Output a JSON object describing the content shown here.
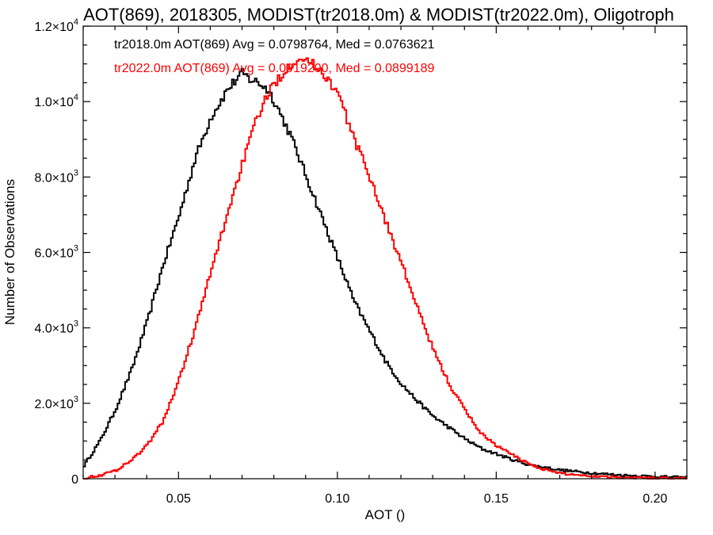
{
  "chart_data": {
    "type": "line",
    "title": "AOT(869), 2018305, MODIST(tr2018.0m) & MODIST(tr2022.0m), Oligotroph",
    "xlabel": "AOT ()",
    "ylabel": "Number of Observations",
    "xlim": [
      0.02,
      0.21
    ],
    "ylim": [
      0,
      12000
    ],
    "grid": false,
    "x_ticks": [
      {
        "value": 0.05,
        "label": "0.05"
      },
      {
        "value": 0.1,
        "label": "0.10"
      },
      {
        "value": 0.15,
        "label": "0.15"
      },
      {
        "value": 0.2,
        "label": "0.20"
      }
    ],
    "y_ticks": [
      {
        "value": 0,
        "mantissa": "0",
        "exponent": ""
      },
      {
        "value": 2000,
        "mantissa": "2.0×10",
        "exponent": "3"
      },
      {
        "value": 4000,
        "mantissa": "4.0×10",
        "exponent": "3"
      },
      {
        "value": 6000,
        "mantissa": "6.0×10",
        "exponent": "3"
      },
      {
        "value": 8000,
        "mantissa": "8.0×10",
        "exponent": "3"
      },
      {
        "value": 10000,
        "mantissa": "1.0×10",
        "exponent": "4"
      },
      {
        "value": 12000,
        "mantissa": "1.2×10",
        "exponent": "4"
      }
    ],
    "annotations": [
      {
        "text": "tr2018.0m AOT(869) Avg = 0.0798764, Med = 0.0763621",
        "color": "#000000"
      },
      {
        "text": "tr2022.0m AOT(869) Avg = 0.0919200, Med = 0.0899189",
        "color": "#ff0000"
      }
    ],
    "series": [
      {
        "color": "#000000",
        "style": "step",
        "x": [
          0.02,
          0.025,
          0.03,
          0.035,
          0.04,
          0.045,
          0.05,
          0.055,
          0.06,
          0.065,
          0.068,
          0.07,
          0.072,
          0.075,
          0.078,
          0.08,
          0.085,
          0.09,
          0.095,
          0.1,
          0.105,
          0.11,
          0.115,
          0.12,
          0.125,
          0.13,
          0.135,
          0.14,
          0.145,
          0.15,
          0.155,
          0.16,
          0.17,
          0.18,
          0.19,
          0.2,
          0.21
        ],
        "y": [
          350,
          1000,
          1850,
          2900,
          4200,
          5700,
          7000,
          8500,
          9600,
          10300,
          10600,
          10750,
          10600,
          10500,
          10300,
          10000,
          9100,
          8000,
          6900,
          5800,
          4700,
          3900,
          3100,
          2500,
          2050,
          1650,
          1350,
          1050,
          800,
          650,
          500,
          370,
          230,
          150,
          90,
          60,
          30
        ]
      },
      {
        "color": "#ff0000",
        "style": "step",
        "x": [
          0.02,
          0.025,
          0.03,
          0.035,
          0.04,
          0.045,
          0.05,
          0.055,
          0.06,
          0.065,
          0.07,
          0.075,
          0.08,
          0.085,
          0.088,
          0.09,
          0.095,
          0.1,
          0.105,
          0.11,
          0.115,
          0.12,
          0.125,
          0.13,
          0.135,
          0.14,
          0.145,
          0.15,
          0.155,
          0.16,
          0.165,
          0.17,
          0.18,
          0.19,
          0.2,
          0.21
        ],
        "y": [
          20,
          90,
          220,
          500,
          900,
          1550,
          2650,
          4000,
          5500,
          7000,
          8400,
          9700,
          10500,
          11000,
          11200,
          11100,
          10800,
          10200,
          9000,
          8000,
          6800,
          5700,
          4500,
          3400,
          2500,
          1800,
          1200,
          870,
          620,
          400,
          240,
          140,
          70,
          40,
          20,
          10
        ]
      }
    ]
  }
}
